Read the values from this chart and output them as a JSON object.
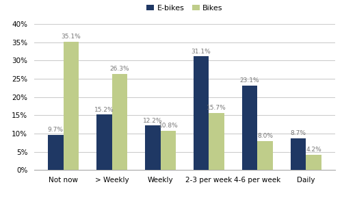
{
  "categories": [
    "Not now",
    "> Weekly",
    "Weekly",
    "2-3 per week",
    "4-6 per week",
    "Daily"
  ],
  "ebikes": [
    9.7,
    15.2,
    12.2,
    31.1,
    23.1,
    8.7
  ],
  "bikes": [
    35.1,
    26.3,
    10.8,
    15.7,
    8.0,
    4.2
  ],
  "ebike_color": "#1F3864",
  "bike_color": "#BFCD8A",
  "legend_labels": [
    "E-bikes",
    "Bikes"
  ],
  "ylim": [
    0,
    40
  ],
  "yticks": [
    0,
    5,
    10,
    15,
    20,
    25,
    30,
    35,
    40
  ],
  "bar_width": 0.32,
  "label_fontsize": 6.5,
  "axis_fontsize": 7.5,
  "legend_fontsize": 8,
  "background_color": "#FFFFFF",
  "grid_color": "#CCCCCC",
  "label_color": "#777777"
}
